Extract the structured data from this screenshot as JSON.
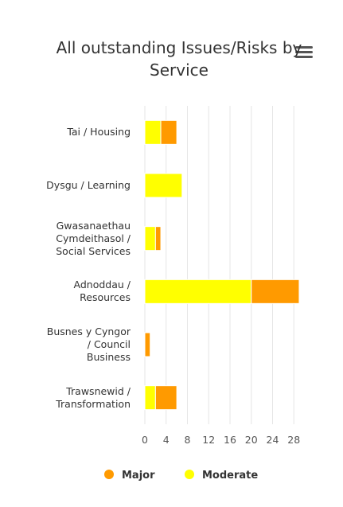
{
  "chart_data": {
    "type": "stacked-bar-horizontal",
    "title": "All outstanding Issues/Risks by Service",
    "categories": [
      "Tai / Housing",
      "Dysgu / Learning",
      "Gwasanaethau Cymdeithasol / Social Services",
      "Adnoddau / Resources",
      "Busnes y Cyngor / Council Business",
      "Trawsnewid / Transformation"
    ],
    "series": [
      {
        "name": "Major",
        "color": "#ff9a00",
        "values": [
          3,
          0,
          1,
          9,
          1,
          4
        ]
      },
      {
        "name": "Moderate",
        "color": "#ffff00",
        "values": [
          3,
          7,
          2,
          20,
          0,
          2
        ]
      }
    ],
    "stack_order": [
      "Moderate",
      "Major"
    ],
    "xlim": [
      0,
      32
    ],
    "xticks": [
      0,
      4,
      8,
      12,
      16,
      20,
      24,
      28
    ],
    "grid": true,
    "legend": "bottom"
  }
}
